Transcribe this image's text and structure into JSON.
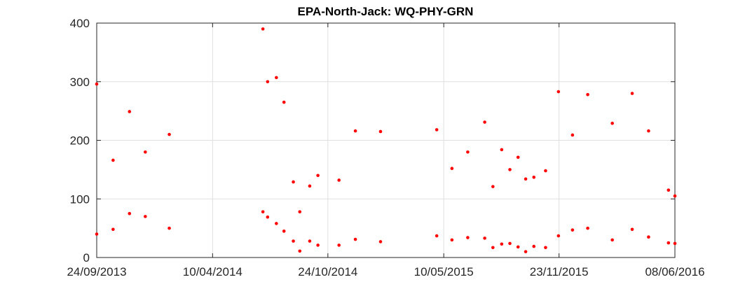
{
  "chart_data": {
    "type": "scatter",
    "title": "EPA-North-Jack: WQ-PHY-GRN",
    "xlabel": "",
    "ylabel": "",
    "xlim": [
      "2013-09-24",
      "2016-06-08"
    ],
    "ylim": [
      0,
      400
    ],
    "x_ticks": [
      "24/09/2013",
      "10/04/2014",
      "24/10/2014",
      "10/05/2015",
      "23/11/2015",
      "08/06/2016"
    ],
    "y_ticks": [
      "0",
      "100",
      "200",
      "300",
      "400"
    ],
    "grid": true,
    "marker_color": "#ff0000",
    "points": [
      {
        "x": "2013-09-24",
        "y": 296
      },
      {
        "x": "2013-09-24",
        "y": 40
      },
      {
        "x": "2013-10-22",
        "y": 166
      },
      {
        "x": "2013-10-22",
        "y": 48
      },
      {
        "x": "2013-11-19",
        "y": 249
      },
      {
        "x": "2013-11-19",
        "y": 75
      },
      {
        "x": "2013-12-16",
        "y": 180
      },
      {
        "x": "2013-12-16",
        "y": 70
      },
      {
        "x": "2014-01-26",
        "y": 210
      },
      {
        "x": "2014-01-26",
        "y": 50
      },
      {
        "x": "2014-07-05",
        "y": 390
      },
      {
        "x": "2014-07-05",
        "y": 78
      },
      {
        "x": "2014-07-13",
        "y": 300
      },
      {
        "x": "2014-07-13",
        "y": 69
      },
      {
        "x": "2014-07-28",
        "y": 307
      },
      {
        "x": "2014-07-28",
        "y": 58
      },
      {
        "x": "2014-08-10",
        "y": 265
      },
      {
        "x": "2014-08-10",
        "y": 45
      },
      {
        "x": "2014-08-26",
        "y": 129
      },
      {
        "x": "2014-08-26",
        "y": 28
      },
      {
        "x": "2014-09-06",
        "y": 78
      },
      {
        "x": "2014-09-06",
        "y": 11
      },
      {
        "x": "2014-09-23",
        "y": 122
      },
      {
        "x": "2014-09-23",
        "y": 28
      },
      {
        "x": "2014-10-07",
        "y": 140
      },
      {
        "x": "2014-10-07",
        "y": 21
      },
      {
        "x": "2014-11-12",
        "y": 132
      },
      {
        "x": "2014-11-12",
        "y": 21
      },
      {
        "x": "2014-12-10",
        "y": 216
      },
      {
        "x": "2014-12-10",
        "y": 31
      },
      {
        "x": "2015-01-22",
        "y": 215
      },
      {
        "x": "2015-01-22",
        "y": 27
      },
      {
        "x": "2015-04-28",
        "y": 218
      },
      {
        "x": "2015-04-28",
        "y": 37
      },
      {
        "x": "2015-05-24",
        "y": 152
      },
      {
        "x": "2015-05-24",
        "y": 30
      },
      {
        "x": "2015-06-20",
        "y": 180
      },
      {
        "x": "2015-06-20",
        "y": 34
      },
      {
        "x": "2015-07-19",
        "y": 231
      },
      {
        "x": "2015-07-19",
        "y": 33
      },
      {
        "x": "2015-08-02",
        "y": 121
      },
      {
        "x": "2015-08-02",
        "y": 17
      },
      {
        "x": "2015-08-17",
        "y": 184
      },
      {
        "x": "2015-08-17",
        "y": 23
      },
      {
        "x": "2015-08-31",
        "y": 150
      },
      {
        "x": "2015-08-31",
        "y": 24
      },
      {
        "x": "2015-09-14",
        "y": 171
      },
      {
        "x": "2015-09-14",
        "y": 18
      },
      {
        "x": "2015-09-27",
        "y": 134
      },
      {
        "x": "2015-09-27",
        "y": 10
      },
      {
        "x": "2015-10-11",
        "y": 137
      },
      {
        "x": "2015-10-11",
        "y": 19
      },
      {
        "x": "2015-10-31",
        "y": 148
      },
      {
        "x": "2015-10-31",
        "y": 17
      },
      {
        "x": "2015-11-22",
        "y": 283
      },
      {
        "x": "2015-11-22",
        "y": 37
      },
      {
        "x": "2015-12-16",
        "y": 209
      },
      {
        "x": "2015-12-16",
        "y": 47
      },
      {
        "x": "2016-01-11",
        "y": 278
      },
      {
        "x": "2016-01-11",
        "y": 50
      },
      {
        "x": "2016-02-22",
        "y": 229
      },
      {
        "x": "2016-02-22",
        "y": 30
      },
      {
        "x": "2016-03-27",
        "y": 280
      },
      {
        "x": "2016-03-27",
        "y": 48
      },
      {
        "x": "2016-04-24",
        "y": 216
      },
      {
        "x": "2016-04-24",
        "y": 35
      },
      {
        "x": "2016-05-28",
        "y": 115
      },
      {
        "x": "2016-05-28",
        "y": 25
      },
      {
        "x": "2016-06-08",
        "y": 105
      },
      {
        "x": "2016-06-08",
        "y": 24
      }
    ]
  }
}
